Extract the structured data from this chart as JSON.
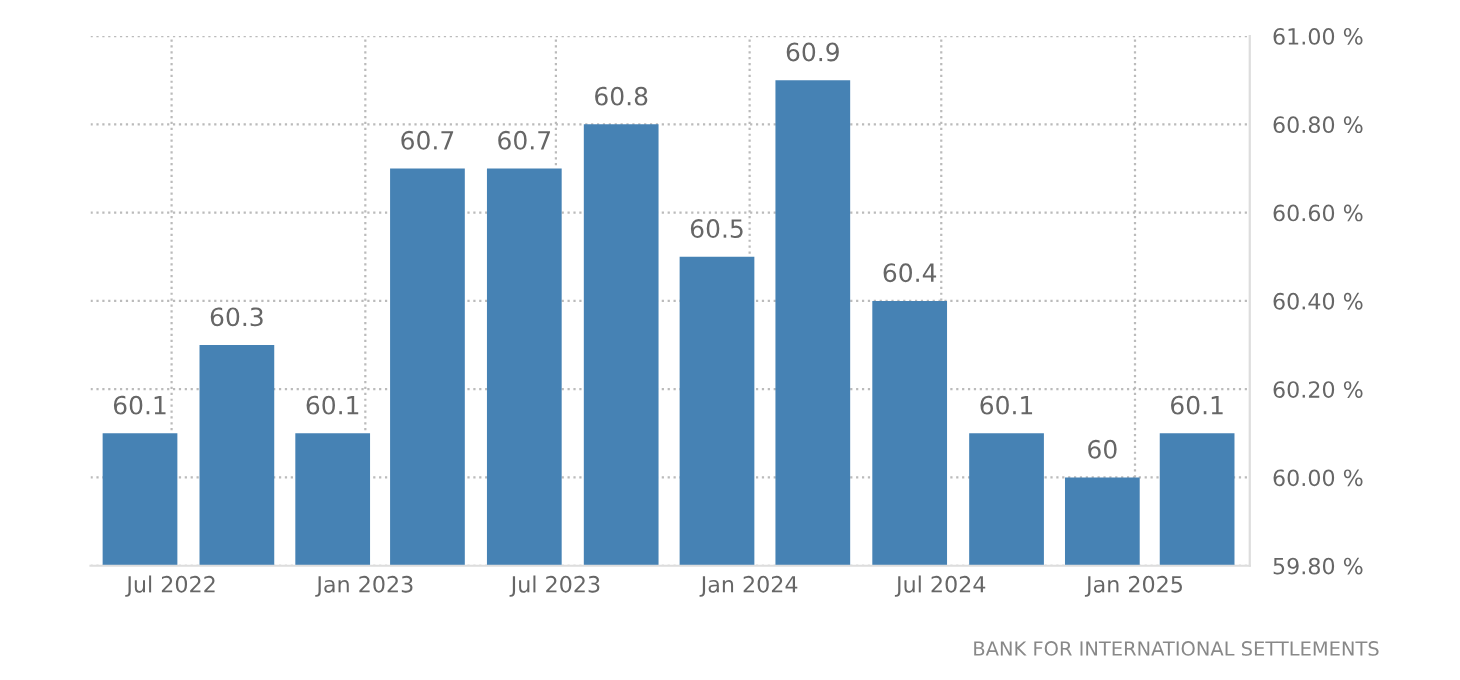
{
  "chart_data": {
    "type": "bar",
    "x": [
      "2022-06-01",
      "2022-09-01",
      "2022-12-01",
      "2023-03-01",
      "2023-06-01",
      "2023-09-01",
      "2023-12-01",
      "2024-03-01",
      "2024-06-01",
      "2024-09-01",
      "2024-12-01",
      "2025-03-01"
    ],
    "values": [
      60.1,
      60.3,
      60.1,
      60.7,
      60.7,
      60.8,
      60.5,
      60.9,
      60.4,
      60.1,
      60,
      60.1
    ],
    "color": "#4682b4",
    "data_labels": true,
    "xlim": [
      "2022-04-15",
      "2025-04-20"
    ],
    "xticks": [
      {
        "value": "2022-07-01",
        "label": "Jul 2022"
      },
      {
        "value": "2023-01-01",
        "label": "Jan 2023"
      },
      {
        "value": "2023-07-01",
        "label": "Jul 2023"
      },
      {
        "value": "2024-01-01",
        "label": "Jan 2024"
      },
      {
        "value": "2024-07-01",
        "label": "Jul 2024"
      },
      {
        "value": "2025-01-01",
        "label": "Jan 2025"
      }
    ],
    "ylim": [
      59.8,
      61.0
    ],
    "yticks": [
      {
        "value": 59.8,
        "label": "59.80 %"
      },
      {
        "value": 60.0,
        "label": "60.00 %"
      },
      {
        "value": 60.2,
        "label": "60.20 %"
      },
      {
        "value": 60.4,
        "label": "60.40 %"
      },
      {
        "value": 60.6,
        "label": "60.60 %"
      },
      {
        "value": 60.8,
        "label": "60.80 %"
      },
      {
        "value": 61.0,
        "label": "61.00 %"
      }
    ],
    "grid": true,
    "annotations": [
      "BANK FOR INTERNATIONAL SETTLEMENTS"
    ]
  }
}
